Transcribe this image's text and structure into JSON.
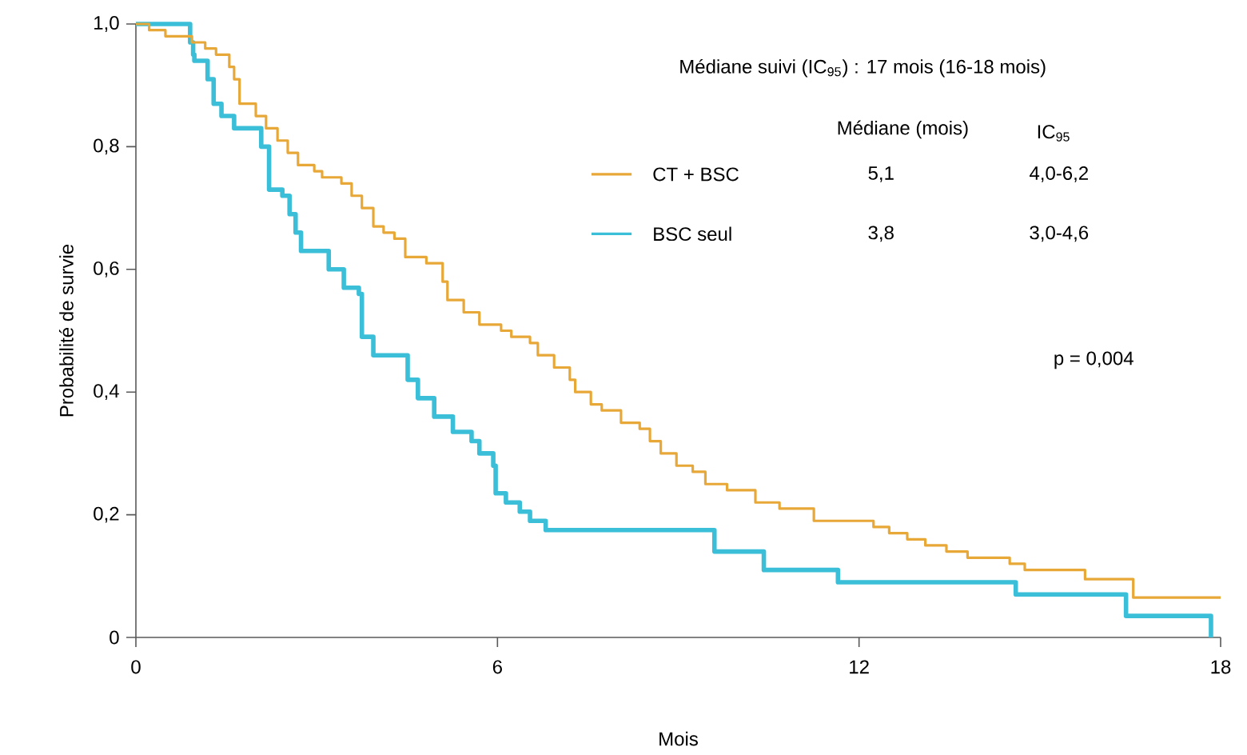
{
  "chart_data": {
    "type": "step",
    "xlabel": "Mois",
    "ylabel": "Probabilité de survie",
    "xlim": [
      0,
      18
    ],
    "xticks": [
      0,
      6,
      12,
      18
    ],
    "ylim": [
      0,
      1
    ],
    "yticks": [
      {
        "value": 1,
        "label": "1,0"
      },
      {
        "value": 0.8,
        "label": "0,8"
      },
      {
        "value": 0.6,
        "label": "0,6"
      },
      {
        "value": 0.4,
        "label": "0,4"
      },
      {
        "value": 0.2,
        "label": "0,2"
      },
      0
    ],
    "legend": "top right",
    "x": [
      0,
      0.22,
      0.49,
      0.93,
      1.15,
      1.33,
      1.55,
      1.63,
      1.72,
      1.99,
      2.16,
      2.35,
      2.52,
      2.69,
      2.96,
      3.09,
      3.41,
      3.58,
      3.75,
      3.94,
      4.11,
      4.29,
      4.47,
      4.82,
      5.09,
      5.17,
      5.44,
      5.7,
      6.06,
      6.23,
      6.54,
      6.67,
      6.94,
      7.2,
      7.29,
      7.55,
      7.73,
      8.05,
      8.36,
      8.53,
      8.71,
      8.97,
      9.24,
      9.45,
      9.81,
      10.28,
      10.68,
      11.25,
      12.24,
      12.5,
      12.8,
      13.1,
      13.45,
      13.8,
      14.5,
      14.75,
      15.75,
      16.55,
      18
    ],
    "series": [
      {
        "name": "CT + BSC",
        "color": "#e8a838",
        "values": [
          1,
          0.99,
          0.98,
          0.97,
          0.96,
          0.95,
          0.93,
          0.91,
          0.87,
          0.85,
          0.83,
          0.81,
          0.79,
          0.77,
          0.76,
          0.75,
          0.74,
          0.72,
          0.7,
          0.67,
          0.66,
          0.65,
          0.62,
          0.61,
          0.58,
          0.55,
          0.53,
          0.51,
          0.5,
          0.49,
          0.48,
          0.46,
          0.44,
          0.42,
          0.4,
          0.38,
          0.37,
          0.35,
          0.34,
          0.32,
          0.3,
          0.28,
          0.27,
          0.25,
          0.24,
          0.22,
          0.21,
          0.19,
          0.18,
          0.17,
          0.16,
          0.15,
          0.14,
          0.13,
          0.12,
          0.11,
          0.095,
          0.065,
          0.065
        ]
      },
      {
        "name": "BSC seul",
        "color": "#3bbfd8",
        "x": [
          0,
          0.9,
          0.95,
          0.97,
          1.19,
          1.29,
          1.42,
          1.63,
          2.08,
          2.21,
          2.43,
          2.55,
          2.65,
          2.74,
          3.2,
          3.45,
          3.7,
          3.75,
          3.94,
          4.51,
          4.68,
          4.95,
          5.26,
          5.57,
          5.7,
          5.93,
          5.97,
          6.14,
          6.37,
          6.54,
          6.8,
          9.6,
          10.42,
          11.65,
          14.6,
          16.43,
          17.84
        ],
        "values": [
          1,
          0.97,
          0.95,
          0.94,
          0.91,
          0.87,
          0.85,
          0.83,
          0.8,
          0.73,
          0.72,
          0.69,
          0.66,
          0.63,
          0.6,
          0.57,
          0.56,
          0.49,
          0.46,
          0.42,
          0.39,
          0.36,
          0.335,
          0.32,
          0.3,
          0.28,
          0.235,
          0.22,
          0.205,
          0.19,
          0.175,
          0.14,
          0.11,
          0.09,
          0.07,
          0.035,
          0
        ]
      }
    ],
    "annotations": [
      "Médiane suivi (IC$_{95}$) : 17 mois (16-18 mois)",
      "Médiane (mois)",
      "IC$_{95}$",
      "5,1",
      "4,0-6,2",
      "3,8",
      "3,0-4,6",
      "p = 0,004"
    ]
  }
}
